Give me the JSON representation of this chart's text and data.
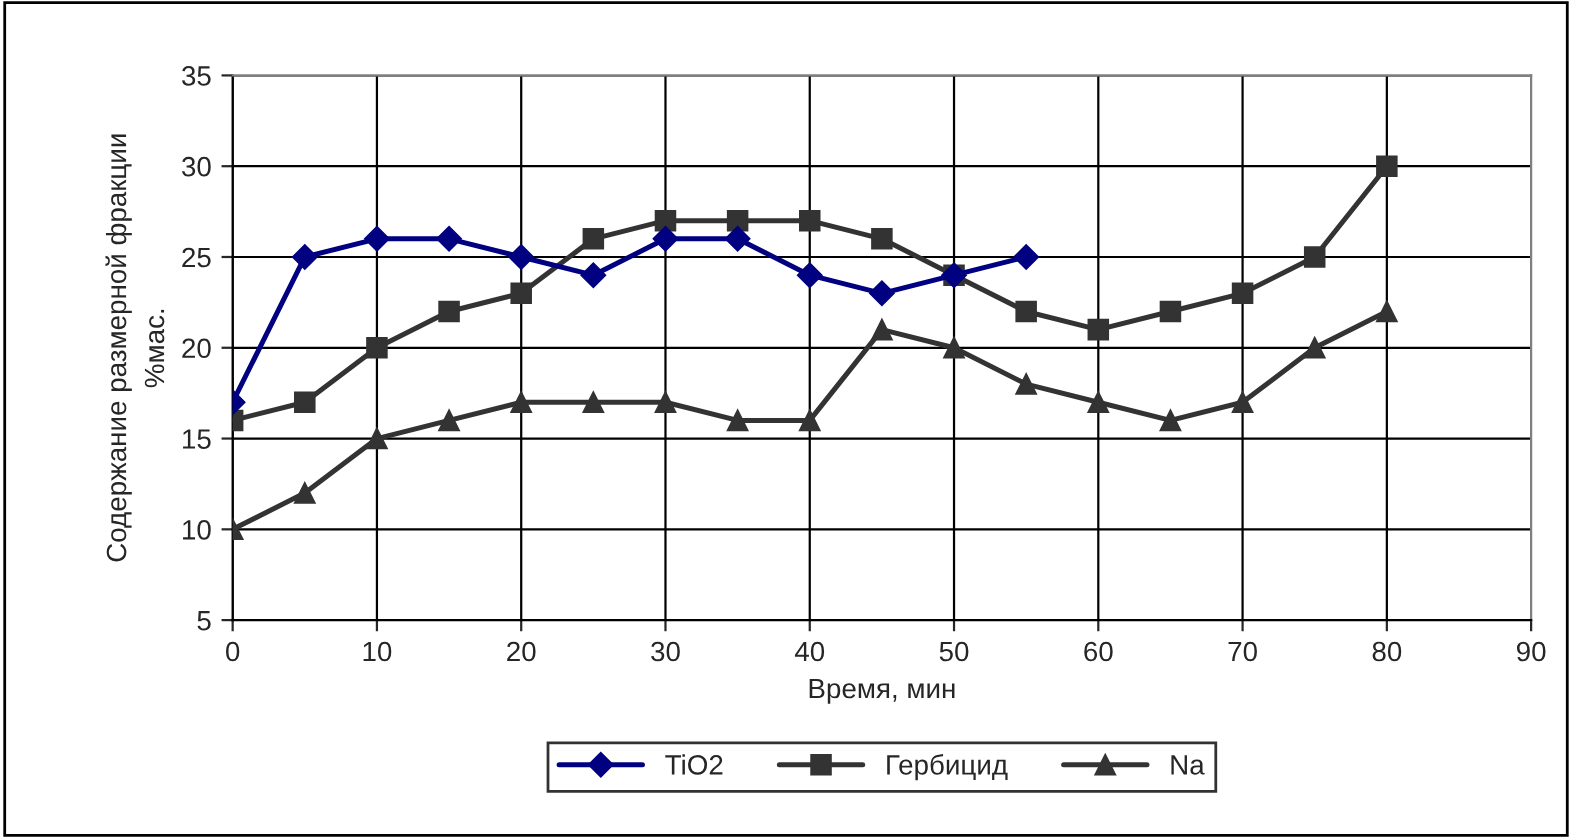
{
  "chart_data": {
    "type": "line",
    "xlabel": "Время, мин",
    "ylabel": "Содержание размерной фракции\n%мас.",
    "xlim": [
      0,
      90
    ],
    "xticks": [
      0,
      10,
      20,
      30,
      40,
      50,
      60,
      70,
      80,
      90
    ],
    "ylim": [
      5,
      35
    ],
    "yticks": [
      5,
      10,
      15,
      20,
      25,
      30,
      35
    ],
    "grid": true,
    "legend": "bottom",
    "line_style": "solid",
    "series": [
      {
        "name": "TiO2",
        "color": "#000080",
        "marker": "diamond",
        "x": [
          0,
          5,
          10,
          15,
          20,
          25,
          30,
          35,
          40,
          45,
          50,
          55
        ],
        "values": [
          17,
          25,
          26,
          26,
          25,
          24,
          26,
          26,
          24,
          23,
          24,
          25
        ]
      },
      {
        "name": "Гербицид",
        "color": "#333333",
        "marker": "square",
        "x": [
          0,
          5,
          10,
          15,
          20,
          25,
          30,
          35,
          40,
          45,
          50,
          55,
          60,
          65,
          70,
          75,
          80
        ],
        "values": [
          16,
          17,
          20,
          22,
          23,
          26,
          27,
          27,
          27,
          26,
          24,
          22,
          21,
          22,
          23,
          25,
          30
        ]
      },
      {
        "name": "Na",
        "color": "#333333",
        "marker": "triangle",
        "x": [
          0,
          5,
          10,
          15,
          20,
          25,
          30,
          35,
          40,
          45,
          50,
          55,
          60,
          65,
          70,
          75,
          80
        ],
        "values": [
          10,
          12,
          15,
          16,
          17,
          17,
          17,
          16,
          16,
          21,
          20,
          18,
          17,
          16,
          17,
          20,
          22
        ]
      }
    ]
  }
}
